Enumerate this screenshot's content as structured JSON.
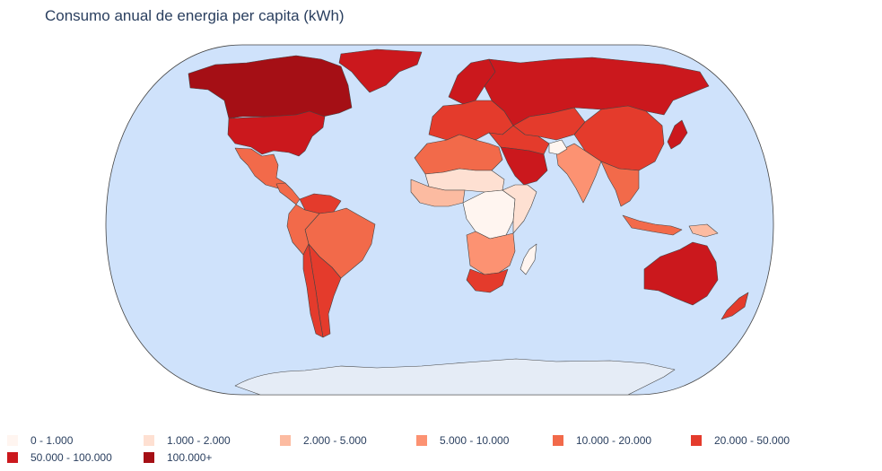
{
  "title": "Consumo anual de energia per capita (kWh)",
  "map": {
    "projection": "natural-earth",
    "ocean_color": "#cfe2fb",
    "land_border_color": "#444444",
    "antarctica_color": "#e5ecf6"
  },
  "legend": {
    "items": [
      {
        "label": "0 - 1.000",
        "color": "#fff5f0"
      },
      {
        "label": "1.000 - 2.000",
        "color": "#fee0d2"
      },
      {
        "label": "2.000 - 5.000",
        "color": "#fcbba1"
      },
      {
        "label": "5.000 - 10.000",
        "color": "#fc9272"
      },
      {
        "label": "10.000 - 20.000",
        "color": "#f26a4a"
      },
      {
        "label": "20.000 - 50.000",
        "color": "#e43b2c"
      },
      {
        "label": "50.000 - 100.000",
        "color": "#cb181d"
      },
      {
        "label": "100.000+",
        "color": "#a50f15"
      }
    ]
  },
  "regions": [
    {
      "name": "Canada",
      "category": "100.000+"
    },
    {
      "name": "United States",
      "category": "50.000 - 100.000"
    },
    {
      "name": "Mexico",
      "category": "10.000 - 20.000"
    },
    {
      "name": "Central America",
      "category": "10.000 - 20.000"
    },
    {
      "name": "Greenland",
      "category": "50.000 - 100.000"
    },
    {
      "name": "Brazil",
      "category": "10.000 - 20.000"
    },
    {
      "name": "Venezuela",
      "category": "20.000 - 50.000"
    },
    {
      "name": "Andean South America",
      "category": "10.000 - 20.000"
    },
    {
      "name": "Argentina",
      "category": "20.000 - 50.000"
    },
    {
      "name": "Chile",
      "category": "20.000 - 50.000"
    },
    {
      "name": "Europe",
      "category": "20.000 - 50.000"
    },
    {
      "name": "Scandinavia",
      "category": "50.000 - 100.000"
    },
    {
      "name": "Russia",
      "category": "50.000 - 100.000"
    },
    {
      "name": "Central Asia",
      "category": "20.000 - 50.000"
    },
    {
      "name": "China",
      "category": "20.000 - 50.000"
    },
    {
      "name": "Japan",
      "category": "50.000 - 100.000"
    },
    {
      "name": "India",
      "category": "5.000 - 10.000"
    },
    {
      "name": "Southeast Asia",
      "category": "10.000 - 20.000"
    },
    {
      "name": "Indonesia",
      "category": "10.000 - 20.000"
    },
    {
      "name": "Middle East",
      "category": "20.000 - 50.000"
    },
    {
      "name": "Arabian Peninsula",
      "category": "50.000 - 100.000"
    },
    {
      "name": "Afghanistan",
      "category": "0 - 1.000"
    },
    {
      "name": "North Africa",
      "category": "10.000 - 20.000"
    },
    {
      "name": "Sahel",
      "category": "1.000 - 2.000"
    },
    {
      "name": "West Africa",
      "category": "2.000 - 5.000"
    },
    {
      "name": "Central Africa",
      "category": "0 - 1.000"
    },
    {
      "name": "East Africa",
      "category": "1.000 - 2.000"
    },
    {
      "name": "Southern Africa",
      "category": "5.000 - 10.000"
    },
    {
      "name": "South Africa",
      "category": "20.000 - 50.000"
    },
    {
      "name": "Madagascar",
      "category": "0 - 1.000"
    },
    {
      "name": "Australia",
      "category": "50.000 - 100.000"
    },
    {
      "name": "New Zealand",
      "category": "20.000 - 50.000"
    },
    {
      "name": "Papua New Guinea",
      "category": "2.000 - 5.000"
    },
    {
      "name": "Antarctica",
      "category": "no data"
    }
  ]
}
